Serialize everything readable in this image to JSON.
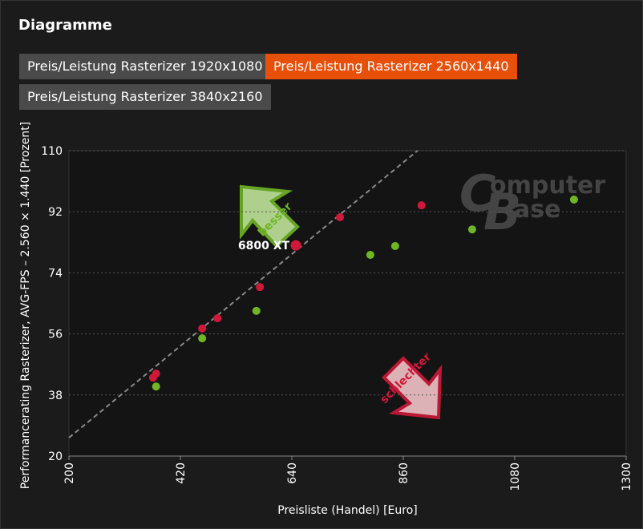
{
  "header": {
    "title": "Diagramme"
  },
  "tabs": [
    "Preis/Leistung Rasterizer 1920x1080",
    "Preis/Leistung Rasterizer 2560x1440",
    "Preis/Leistung Rasterizer 3840x2160"
  ],
  "active_tab": 1,
  "chart_data": {
    "type": "scatter",
    "x_label": "Preisliste (Handel) [Euro]",
    "y_label": "Performancerating Rasterizer, AVG-FPS – 2.560 × 1.440 [Prozent]",
    "xlim": [
      200,
      1300
    ],
    "xticks": [
      200,
      420,
      640,
      860,
      1080,
      1300
    ],
    "ylim": [
      20,
      110
    ],
    "yticks": [
      20,
      38,
      56,
      74,
      92,
      110
    ],
    "grid": true,
    "series": [
      {
        "color": "#d0183a",
        "x": [
          366,
          372,
          463,
          493,
          577,
          648,
          735,
          896
        ],
        "y": [
          43.1,
          44.3,
          57.6,
          60.6,
          69.8,
          82.1,
          90.4,
          93.9
        ]
      },
      {
        "color": "#6fb526",
        "x": [
          372,
          463,
          570,
          795,
          844,
          996,
          1197
        ],
        "y": [
          40.5,
          54.7,
          62.8,
          79.3,
          81.9,
          86.8,
          95.6
        ]
      }
    ],
    "highlight": {
      "series": 0,
      "index": 5,
      "label": "6800 XT"
    },
    "reference_line": {
      "x": [
        200,
        888
      ],
      "y": [
        25.4,
        110
      ]
    },
    "annotations": [
      "besser",
      "schlechter"
    ],
    "watermark": [
      "omputer",
      "ase"
    ]
  }
}
